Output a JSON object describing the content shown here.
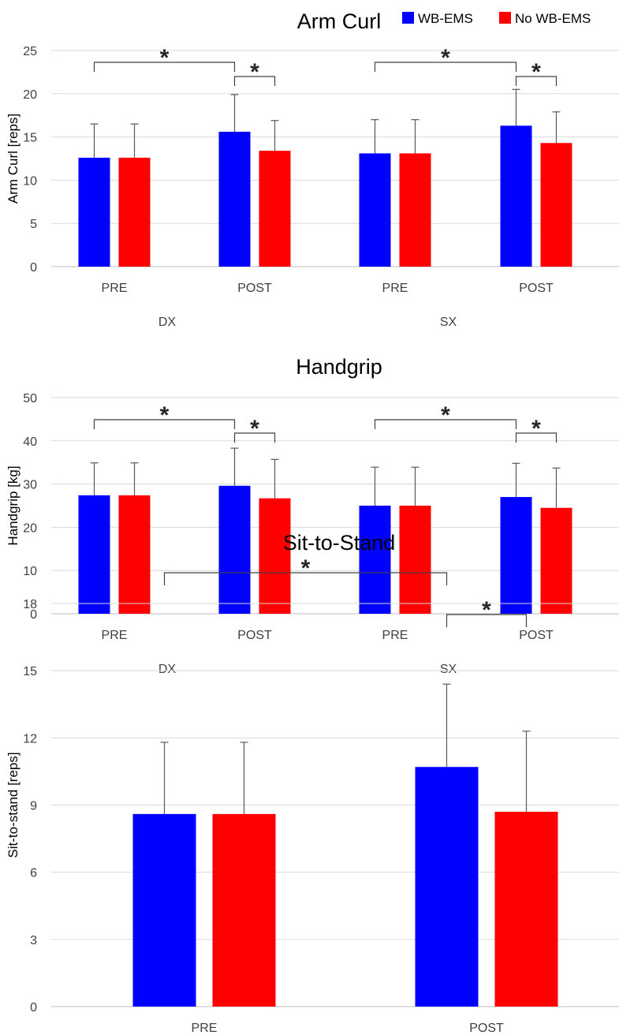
{
  "colors": {
    "wb": "#0000ff",
    "no": "#ff0000",
    "grid": "#d9d9d9",
    "axis": "#bfbfbf",
    "text": "#404040",
    "title": "#000000"
  },
  "legend": {
    "wb_label": "WB-EMS",
    "no_label": "No WB-EMS",
    "position": "top-right"
  },
  "chart_data": [
    {
      "type": "bar",
      "title": "Arm Curl",
      "ylabel": "Arm Curl [reps]",
      "ylim": [
        0,
        25
      ],
      "yticks": [
        0,
        5,
        10,
        15,
        20,
        25
      ],
      "grid": true,
      "categories": [
        "PRE",
        "POST",
        "PRE",
        "POST"
      ],
      "groups": [
        {
          "label": "DX",
          "span": [
            0,
            1
          ]
        },
        {
          "label": "SX",
          "span": [
            2,
            3
          ]
        }
      ],
      "series": [
        {
          "name": "WB-EMS",
          "values": [
            12.6,
            15.6,
            13.1,
            16.3
          ],
          "errors": [
            3.9,
            4.3,
            3.9,
            4.2
          ]
        },
        {
          "name": "No WB-EMS",
          "values": [
            12.6,
            13.4,
            13.1,
            14.3
          ],
          "errors": [
            3.9,
            3.5,
            3.9,
            3.6
          ]
        }
      ],
      "significance": [
        {
          "from": [
            0,
            0
          ],
          "to": [
            1,
            0
          ],
          "label": "*"
        },
        {
          "from": [
            1,
            0
          ],
          "to": [
            1,
            1
          ],
          "label": "*"
        },
        {
          "from": [
            2,
            0
          ],
          "to": [
            3,
            0
          ],
          "label": "*"
        },
        {
          "from": [
            3,
            0
          ],
          "to": [
            3,
            1
          ],
          "label": "*"
        }
      ]
    },
    {
      "type": "bar",
      "title": "Handgrip",
      "ylabel": "Handgrip [kg]",
      "ylim": [
        0,
        50
      ],
      "yticks": [
        0,
        10,
        20,
        30,
        40,
        50
      ],
      "grid": true,
      "categories": [
        "PRE",
        "POST",
        "PRE",
        "POST"
      ],
      "groups": [
        {
          "label": "DX",
          "span": [
            0,
            1
          ]
        },
        {
          "label": "SX",
          "span": [
            2,
            3
          ]
        }
      ],
      "series": [
        {
          "name": "WB-EMS",
          "values": [
            27.4,
            29.6,
            25.0,
            27.0
          ],
          "errors": [
            7.5,
            8.7,
            8.9,
            7.8
          ]
        },
        {
          "name": "No WB-EMS",
          "values": [
            27.4,
            26.7,
            25.0,
            24.5
          ],
          "errors": [
            7.5,
            9.0,
            8.9,
            9.2
          ]
        }
      ],
      "significance": [
        {
          "from": [
            0,
            0
          ],
          "to": [
            1,
            0
          ],
          "label": "*"
        },
        {
          "from": [
            1,
            0
          ],
          "to": [
            1,
            1
          ],
          "label": "*"
        },
        {
          "from": [
            2,
            0
          ],
          "to": [
            3,
            0
          ],
          "label": "*"
        },
        {
          "from": [
            3,
            0
          ],
          "to": [
            3,
            1
          ],
          "label": "*"
        }
      ]
    },
    {
      "type": "bar",
      "title": "Sit-to-Stand",
      "ylabel": "Sit-to-stand [reps]",
      "ylim": [
        0,
        18
      ],
      "yticks": [
        0,
        3,
        6,
        9,
        12,
        15,
        18
      ],
      "grid": true,
      "categories": [
        "PRE",
        "POST"
      ],
      "groups": [],
      "series": [
        {
          "name": "WB-EMS",
          "values": [
            8.6,
            10.7
          ],
          "errors": [
            3.2,
            3.7
          ]
        },
        {
          "name": "No WB-EMS",
          "values": [
            8.6,
            8.7
          ],
          "errors": [
            3.2,
            3.6
          ]
        }
      ],
      "significance": [
        {
          "from": [
            0,
            0
          ],
          "to": [
            1,
            0
          ],
          "label": "*"
        },
        {
          "from": [
            1,
            0
          ],
          "to": [
            1,
            1
          ],
          "label": "*"
        }
      ]
    }
  ]
}
